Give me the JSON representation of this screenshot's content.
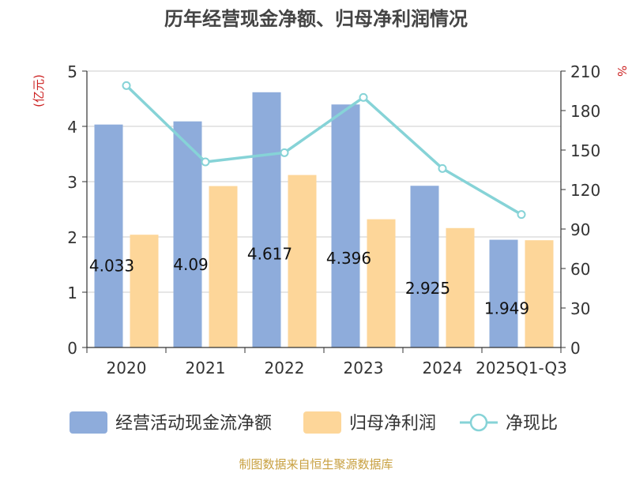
{
  "chart_data": {
    "type": "bar",
    "title": "历年经营现金净额、归母净利润情况",
    "y_left_unit": "(亿元)",
    "y_right_unit": "%",
    "categories": [
      "2020",
      "2021",
      "2022",
      "2023",
      "2024",
      "2025Q1-Q3"
    ],
    "ylim_left": [
      0,
      5
    ],
    "ylim_right": [
      0,
      210
    ],
    "yticks_left": [
      "0",
      "1",
      "2",
      "3",
      "4",
      "5"
    ],
    "yticks_right": [
      "0",
      "30",
      "60",
      "90",
      "120",
      "150",
      "180",
      "210"
    ],
    "grid": true,
    "legend_position": "bottom",
    "series": [
      {
        "name": "经营活动现金流净额",
        "kind": "bar",
        "axis": "left",
        "color": "#8eacdb",
        "values": [
          4.033,
          4.09,
          4.617,
          4.396,
          2.925,
          1.949
        ],
        "labels": [
          "4.033",
          "4.09",
          "4.617",
          "4.396",
          "2.925",
          "1.949"
        ]
      },
      {
        "name": "归母净利润",
        "kind": "bar",
        "axis": "left",
        "color": "#fdd699",
        "values": [
          2.04,
          2.92,
          3.12,
          2.32,
          2.16,
          1.94
        ]
      },
      {
        "name": "净现比",
        "kind": "line",
        "axis": "right",
        "color": "#86d3d7",
        "values": [
          199,
          141,
          148,
          190,
          136,
          101
        ]
      }
    ],
    "source": "制图数据来自恒生聚源数据库"
  }
}
